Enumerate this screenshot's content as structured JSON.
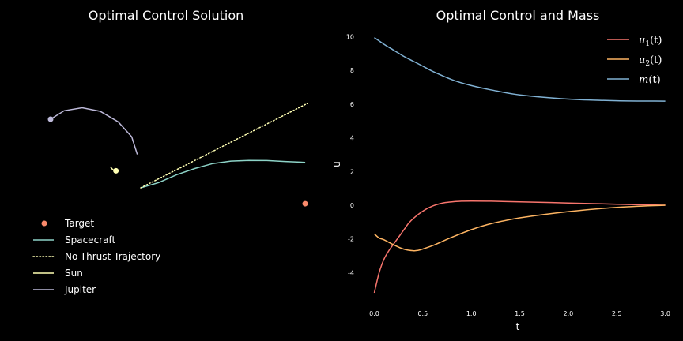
{
  "chart_data": [
    {
      "type": "line",
      "title": "Optimal Control Solution",
      "axes_visible": false,
      "legend": "lower-left",
      "series": [
        {
          "name": "Target",
          "kind": "marker",
          "color": "#fa8a6b",
          "points": [
            [
              6.9,
              -0.9
            ]
          ]
        },
        {
          "name": "Spacecraft",
          "kind": "line",
          "color": "#8dd3c7",
          "points": [
            [
              -0.4,
              0.0
            ],
            [
              0.4,
              0.3
            ],
            [
              1.2,
              0.75
            ],
            [
              2.0,
              1.1
            ],
            [
              2.8,
              1.38
            ],
            [
              3.6,
              1.52
            ],
            [
              4.4,
              1.56
            ],
            [
              5.2,
              1.55
            ],
            [
              6.0,
              1.5
            ],
            [
              6.9,
              1.45
            ]
          ]
        },
        {
          "name": "No-Thrust Trajectory",
          "kind": "dotted",
          "color": "#ffffb3",
          "points": [
            [
              -0.4,
              0.0
            ],
            [
              7.0,
              4.8
            ]
          ]
        },
        {
          "name": "Sun",
          "kind": "line+marker",
          "color": "#ffffb3",
          "points": [
            [
              -1.75,
              1.2
            ],
            [
              -1.65,
              1.05
            ],
            [
              -1.55,
              0.98
            ]
          ],
          "marker_at": [
            -1.5,
            0.97
          ]
        },
        {
          "name": "Jupiter",
          "kind": "line+marker",
          "color": "#bebada",
          "points": [
            [
              -4.4,
              3.9
            ],
            [
              -3.8,
              4.38
            ],
            [
              -3.0,
              4.55
            ],
            [
              -2.2,
              4.35
            ],
            [
              -1.4,
              3.75
            ],
            [
              -0.8,
              2.9
            ],
            [
              -0.55,
              1.9
            ]
          ],
          "marker_at": [
            -4.4,
            3.9
          ]
        }
      ]
    },
    {
      "type": "line",
      "title": "Optimal Control and Mass",
      "xlabel": "t",
      "ylabel": "u",
      "xlim": [
        -0.1,
        3.0
      ],
      "ylim": [
        -6.3,
        10.5
      ],
      "xticks": [
        "0.0",
        "0.5",
        "1.0",
        "1.5",
        "2.0",
        "2.5",
        "3.0"
      ],
      "yticks": [
        "-4",
        "-2",
        "0",
        "2",
        "4",
        "6",
        "8",
        "10"
      ],
      "legend": "top-right",
      "series": [
        {
          "name": "u_1(t)",
          "label_main": "u",
          "label_sub": "1",
          "label_tail": "(t)",
          "color": "#f8756d",
          "x": [
            0.0,
            0.05,
            0.1,
            0.15,
            0.2,
            0.25,
            0.3,
            0.35,
            0.4,
            0.5,
            0.6,
            0.7,
            0.8,
            0.9,
            1.0,
            1.2,
            1.5,
            2.0,
            2.5,
            3.0
          ],
          "y": [
            -5.2,
            -4.0,
            -3.2,
            -2.7,
            -2.3,
            -1.9,
            -1.5,
            -1.1,
            -0.8,
            -0.35,
            -0.05,
            0.12,
            0.2,
            0.24,
            0.25,
            0.24,
            0.2,
            0.13,
            0.06,
            0.0
          ]
        },
        {
          "name": "u_2(t)",
          "label_main": "u",
          "label_sub": "2",
          "label_tail": "(t)",
          "color": "#fdb462",
          "x": [
            0.0,
            0.05,
            0.1,
            0.2,
            0.3,
            0.4,
            0.45,
            0.5,
            0.6,
            0.7,
            0.8,
            1.0,
            1.2,
            1.5,
            2.0,
            2.5,
            3.0
          ],
          "y": [
            -1.7,
            -1.95,
            -2.05,
            -2.35,
            -2.6,
            -2.7,
            -2.68,
            -2.6,
            -2.4,
            -2.15,
            -1.9,
            -1.45,
            -1.1,
            -0.75,
            -0.38,
            -0.13,
            0.0
          ]
        },
        {
          "name": "m(t)",
          "label_main": "m",
          "label_sub": "",
          "label_tail": "(t)",
          "color": "#80b1d3",
          "x": [
            0.0,
            0.1,
            0.2,
            0.3,
            0.4,
            0.5,
            0.6,
            0.8,
            1.0,
            1.2,
            1.5,
            2.0,
            2.5,
            3.0
          ],
          "y": [
            9.95,
            9.55,
            9.2,
            8.85,
            8.55,
            8.25,
            7.95,
            7.45,
            7.1,
            6.85,
            6.55,
            6.3,
            6.2,
            6.18
          ]
        }
      ]
    }
  ]
}
